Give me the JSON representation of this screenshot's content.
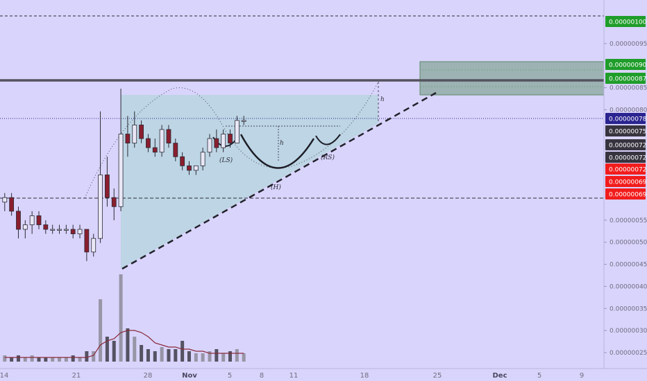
{
  "chart_data": {
    "type": "candlestick",
    "title": "",
    "xlabel": "",
    "ylabel": "",
    "ylim": [
      2.2e-07,
      1.05e-06
    ],
    "grid": false,
    "x_ticks": [
      {
        "label": "14",
        "day": 14,
        "bold": false
      },
      {
        "label": "21",
        "day": 21,
        "bold": false
      },
      {
        "label": "28",
        "day": 28,
        "bold": false
      },
      {
        "label": "Nov",
        "day": 32,
        "bold": true
      },
      {
        "label": "5",
        "day": 36,
        "bold": false
      },
      {
        "label": "8",
        "day": 39,
        "bold": false
      },
      {
        "label": "11",
        "day": 42,
        "bold": false
      },
      {
        "label": "18",
        "day": 49,
        "bold": false
      },
      {
        "label": "25",
        "day": 56,
        "bold": false
      },
      {
        "label": "Dec",
        "day": 62,
        "bold": true
      },
      {
        "label": "5",
        "day": 66,
        "bold": false
      },
      {
        "label": "9",
        "day": 70,
        "bold": false
      }
    ],
    "y_ticks": [
      "0.00000095",
      "0.00000085",
      "0.00000080",
      "0.00000055",
      "0.00000050",
      "0.00000045",
      "0.00000040",
      "0.00000035",
      "0.00000030",
      "0.00000025"
    ],
    "y_tick_values": [
      9.5e-07,
      8.5e-07,
      8e-07,
      5.5e-07,
      5e-07,
      4.5e-07,
      4e-07,
      3.5e-07,
      3e-07,
      2.5e-07
    ],
    "price_badges": [
      {
        "label": "0.00000100",
        "value": 1e-06,
        "color": "#1f9d2a",
        "text_color": "#ffffff"
      },
      {
        "label": "0.00000090",
        "value": 9e-07,
        "color": "#1f9d2a",
        "text_color": "#ffffff"
      },
      {
        "label": "0.00000087",
        "value": 8.7e-07,
        "color": "#1f9d2a",
        "text_color": "#ffffff"
      },
      {
        "label": "0.00000078",
        "value": 7.8e-07,
        "color": "#2a2490",
        "text_color": "#ffffff"
      },
      {
        "label": "0.00000075",
        "value": 7.5e-07,
        "color": "#37343f",
        "text_color": "#ffffff"
      },
      {
        "label": "0.00000072",
        "value": 7.2e-07,
        "color": "#37343f",
        "text_color": "#ffffff"
      },
      {
        "label": "0.00000072",
        "value": 7.2e-07,
        "color": "#37343f",
        "text_color": "#ffffff"
      },
      {
        "label": "0.00000072",
        "value": 7.2e-07,
        "color": "#f21c1c",
        "text_color": "#ffffff"
      },
      {
        "label": "0.00000069",
        "value": 6.9e-07,
        "color": "#f21c1c",
        "text_color": "#ffffff"
      },
      {
        "label": "0.00000069",
        "value": 6.9e-07,
        "color": "#f21c1c",
        "text_color": "#ffffff"
      }
    ],
    "annotations": {
      "left_shoulder": "(LS)",
      "head": "(H)",
      "right_shoulder": "(RS)",
      "height_mark": "h"
    },
    "series": [
      {
        "day": 13,
        "o": 6e-07,
        "h": 6.2e-07,
        "l": 5.8e-07,
        "c": 6.1e-07,
        "v": 0.03
      },
      {
        "day": 14,
        "o": 6.1e-07,
        "h": 6.2e-07,
        "l": 5.7e-07,
        "c": 5.8e-07,
        "v": 0.02
      },
      {
        "day": 15,
        "o": 5.8e-07,
        "h": 5.9e-07,
        "l": 5.2e-07,
        "c": 5.4e-07,
        "v": 0.03
      },
      {
        "day": 16,
        "o": 5.4e-07,
        "h": 5.6e-07,
        "l": 5.2e-07,
        "c": 5.5e-07,
        "v": 0.02
      },
      {
        "day": 17,
        "o": 5.5e-07,
        "h": 5.8e-07,
        "l": 5.3e-07,
        "c": 5.7e-07,
        "v": 0.03
      },
      {
        "day": 18,
        "o": 5.7e-07,
        "h": 5.8e-07,
        "l": 5.4e-07,
        "c": 5.5e-07,
        "v": 0.02
      },
      {
        "day": 19,
        "o": 5.5e-07,
        "h": 5.6e-07,
        "l": 5.3e-07,
        "c": 5.4e-07,
        "v": 0.02
      },
      {
        "day": 20,
        "o": 5.4e-07,
        "h": 5.5e-07,
        "l": 5.3e-07,
        "c": 5.4e-07,
        "v": 0.02
      },
      {
        "day": 21,
        "o": 5.4e-07,
        "h": 5.5e-07,
        "l": 5.3e-07,
        "c": 5.4e-07,
        "v": 0.02
      },
      {
        "day": 22,
        "o": 5.4e-07,
        "h": 5.5e-07,
        "l": 5.3e-07,
        "c": 5.4e-07,
        "v": 0.02
      },
      {
        "day": 23,
        "o": 5.4e-07,
        "h": 5.5e-07,
        "l": 5.2e-07,
        "c": 5.3e-07,
        "v": 0.03
      },
      {
        "day": 24,
        "o": 5.3e-07,
        "h": 5.5e-07,
        "l": 5.2e-07,
        "c": 5.4e-07,
        "v": 0.02
      },
      {
        "day": 25,
        "o": 5.4e-07,
        "h": 5.4e-07,
        "l": 4.7e-07,
        "c": 4.9e-07,
        "v": 0.05
      },
      {
        "day": 26,
        "o": 4.9e-07,
        "h": 5.3e-07,
        "l": 4.8e-07,
        "c": 5.2e-07,
        "v": 0.05
      },
      {
        "day": 27,
        "o": 5.2e-07,
        "h": 8e-07,
        "l": 5.1e-07,
        "c": 6.6e-07,
        "v": 0.3
      },
      {
        "day": 28,
        "o": 6.6e-07,
        "h": 7e-07,
        "l": 5.9e-07,
        "c": 6.1e-07,
        "v": 0.12
      },
      {
        "day": 29,
        "o": 6.1e-07,
        "h": 6.3e-07,
        "l": 5.6e-07,
        "c": 5.9e-07,
        "v": 0.1
      },
      {
        "day": 30,
        "o": 5.9e-07,
        "h": 8.5e-07,
        "l": 5.8e-07,
        "c": 7.5e-07,
        "v": 0.42
      },
      {
        "day": 31,
        "o": 7.5e-07,
        "h": 7.9e-07,
        "l": 7e-07,
        "c": 7.3e-07,
        "v": 0.16
      },
      {
        "day": 32,
        "o": 7.3e-07,
        "h": 8e-07,
        "l": 7.2e-07,
        "c": 7.7e-07,
        "v": 0.12
      },
      {
        "day": 33,
        "o": 7.7e-07,
        "h": 7.8e-07,
        "l": 7.3e-07,
        "c": 7.4e-07,
        "v": 0.08
      },
      {
        "day": 34,
        "o": 7.4e-07,
        "h": 7.5e-07,
        "l": 7.1e-07,
        "c": 7.2e-07,
        "v": 0.06
      },
      {
        "day": 35,
        "o": 7.2e-07,
        "h": 7.4e-07,
        "l": 7e-07,
        "c": 7.1e-07,
        "v": 0.05
      },
      {
        "day": 36,
        "o": 7.1e-07,
        "h": 7.7e-07,
        "l": 7e-07,
        "c": 7.6e-07,
        "v": 0.07
      },
      {
        "day": 37,
        "o": 7.6e-07,
        "h": 7.7e-07,
        "l": 7.2e-07,
        "c": 7.3e-07,
        "v": 0.06
      },
      {
        "day": 38,
        "o": 7.3e-07,
        "h": 7.4e-07,
        "l": 6.9e-07,
        "c": 7e-07,
        "v": 0.06
      },
      {
        "day": 39,
        "o": 7e-07,
        "h": 7.1e-07,
        "l": 6.7e-07,
        "c": 6.8e-07,
        "v": 0.1
      },
      {
        "day": 40,
        "o": 6.8e-07,
        "h": 6.9e-07,
        "l": 6.6e-07,
        "c": 6.7e-07,
        "v": 0.05
      },
      {
        "day": 41,
        "o": 6.7e-07,
        "h": 6.8e-07,
        "l": 6.6e-07,
        "c": 6.8e-07,
        "v": 0.04
      },
      {
        "day": 42,
        "o": 6.8e-07,
        "h": 7.2e-07,
        "l": 6.7e-07,
        "c": 7.1e-07,
        "v": 0.04
      },
      {
        "day": 43,
        "o": 7.1e-07,
        "h": 7.5e-07,
        "l": 7e-07,
        "c": 7.4e-07,
        "v": 0.05
      },
      {
        "day": 44,
        "o": 7.4e-07,
        "h": 7.6e-07,
        "l": 7.1e-07,
        "c": 7.2e-07,
        "v": 0.06
      },
      {
        "day": 45,
        "o": 7.2e-07,
        "h": 7.6e-07,
        "l": 7.1e-07,
        "c": 7.5e-07,
        "v": 0.04
      },
      {
        "day": 46,
        "o": 7.5e-07,
        "h": 7.6e-07,
        "l": 7.2e-07,
        "c": 7.3e-07,
        "v": 0.05
      },
      {
        "day": 47,
        "o": 7.3e-07,
        "h": 7.9e-07,
        "l": 7.3e-07,
        "c": 7.8e-07,
        "v": 0.06
      },
      {
        "day": 48,
        "o": 7.8e-07,
        "h": 7.9e-07,
        "l": 7.7e-07,
        "c": 7.8e-07,
        "v": 0.04
      }
    ],
    "volume_ma": [
      0.02,
      0.02,
      0.02,
      0.02,
      0.02,
      0.02,
      0.02,
      0.02,
      0.02,
      0.02,
      0.02,
      0.02,
      0.02,
      0.03,
      0.08,
      0.1,
      0.11,
      0.14,
      0.15,
      0.15,
      0.14,
      0.12,
      0.09,
      0.08,
      0.07,
      0.07,
      0.06,
      0.06,
      0.05,
      0.05,
      0.04,
      0.04,
      0.04,
      0.04,
      0.04,
      0.04
    ]
  }
}
